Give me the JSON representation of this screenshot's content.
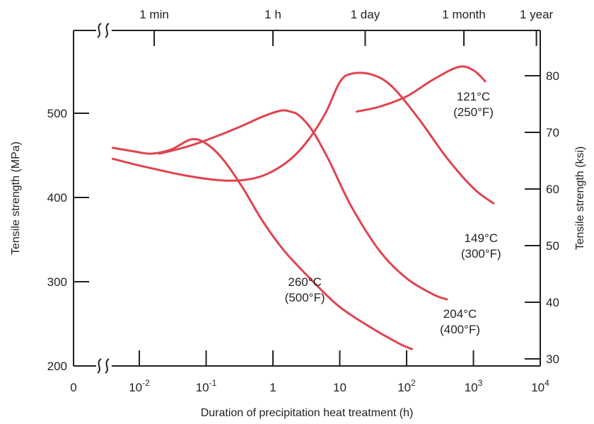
{
  "chart_data": {
    "type": "line",
    "title": "",
    "xlabel": "Duration of precipitation heat treatment (h)",
    "ylabel": "Tensile strength (MPa)",
    "y2label": "Tensile strength (ksi)",
    "x_scale": "log",
    "xlim": [
      0.001,
      10000
    ],
    "ylim": [
      200,
      600
    ],
    "y2lim": [
      29,
      87
    ],
    "grid": false,
    "legend": "none",
    "x_tick_labels": [
      {
        "value": 0.01,
        "base": "10",
        "exp": "-2"
      },
      {
        "value": 0.1,
        "base": "10",
        "exp": "-1"
      },
      {
        "value": 1,
        "base": "1",
        "exp": ""
      },
      {
        "value": 10,
        "base": "10",
        "exp": ""
      },
      {
        "value": 100,
        "base": "10",
        "exp": "2"
      },
      {
        "value": 1000,
        "base": "10",
        "exp": "3"
      },
      {
        "value": 10000,
        "base": "10",
        "exp": "4"
      }
    ],
    "x_origin_label": "0",
    "y_ticks": [
      200,
      300,
      400,
      500
    ],
    "y2_ticks": [
      30,
      40,
      50,
      60,
      70,
      80
    ],
    "top_axis": [
      {
        "label": "1 min",
        "value": 0.0167
      },
      {
        "label": "1 h",
        "value": 1
      },
      {
        "label": "1 day",
        "value": 24
      },
      {
        "label": "1 month",
        "value": 720
      },
      {
        "label": "1 year",
        "value": 8760
      }
    ],
    "curve_color": "#e0434f",
    "series": [
      {
        "name": "260°C (500°F)",
        "label_lines": [
          "260°C",
          "(500°F)"
        ],
        "label_at": {
          "x": 3,
          "y": 295
        },
        "x": [
          0.004,
          0.008,
          0.015,
          0.03,
          0.06,
          0.1,
          0.18,
          0.35,
          0.7,
          1.5,
          4,
          10,
          30,
          80,
          120
        ],
        "y": [
          459,
          455,
          452,
          457,
          469,
          464,
          445,
          412,
          372,
          336,
          300,
          270,
          245,
          226,
          220
        ]
      },
      {
        "name": "204°C (400°F)",
        "label_lines": [
          "204°C",
          "(400°F)"
        ],
        "label_at": {
          "x": 630,
          "y": 257
        },
        "x": [
          0.02,
          0.05,
          0.1,
          0.3,
          0.7,
          1.3,
          1.8,
          2.5,
          4,
          7,
          15,
          40,
          100,
          250,
          400
        ],
        "y": [
          452,
          460,
          468,
          483,
          496,
          503,
          502,
          497,
          478,
          443,
          389,
          336,
          304,
          285,
          279
        ]
      },
      {
        "name": "149°C (300°F)",
        "label_lines": [
          "149°C",
          "(300°F)"
        ],
        "label_at": {
          "x": 1300,
          "y": 347
        },
        "x": [
          0.004,
          0.01,
          0.05,
          0.2,
          0.6,
          1.5,
          3,
          6,
          10,
          15,
          30,
          60,
          150,
          400,
          1000,
          2000
        ],
        "y": [
          446,
          438,
          426,
          420,
          424,
          440,
          463,
          499,
          537,
          547,
          546,
          532,
          494,
          447,
          411,
          393
        ]
      },
      {
        "name": "121°C (250°F)",
        "label_lines": [
          "121°C",
          "(250°F)"
        ],
        "label_at": {
          "x": 1000,
          "y": 515
        },
        "x": [
          18,
          40,
          100,
          250,
          600,
          1000,
          1500
        ],
        "y": [
          502,
          508,
          520,
          540,
          555,
          551,
          538
        ]
      }
    ]
  }
}
